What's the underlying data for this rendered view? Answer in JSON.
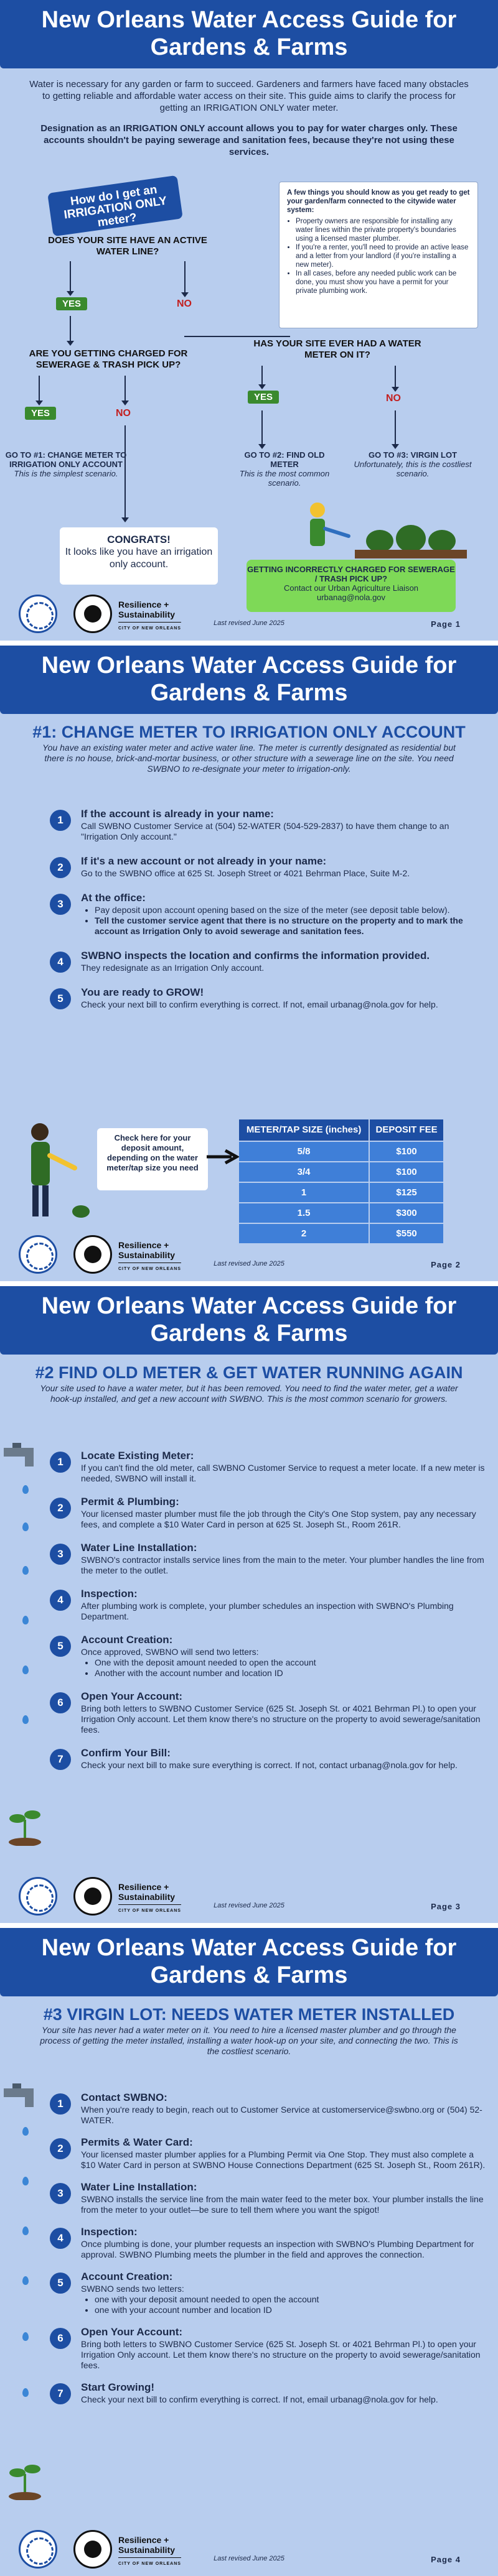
{
  "brand": {
    "blue": "#1d4ea3",
    "page_bg": "#b8cdee",
    "yes_green": "#3a8a2e",
    "no_red": "#c31f1f",
    "callout_green": "#7ed957"
  },
  "title": "New Orleans Water Access Guide for Gardens & Farms",
  "footer": {
    "resilience": "Resilience +",
    "sustainability": "Sustainability",
    "city": "CITY OF NEW ORLEANS",
    "revised": "Last revised June 2025"
  },
  "page1": {
    "intro": "Water is necessary for any garden or farm to succeed. Gardeners and farmers have faced many obstacles to getting reliable and affordable water access on their site. This guide aims to clarify the process for getting an IRRIGATION ONLY water meter.",
    "intro_bold": "Designation as an IRRIGATION ONLY account allows you to pay for water charges only. These accounts shouldn't be paying sewerage and sanitation fees, because they're not using these services.",
    "start": "How do I get an IRRIGATION ONLY meter?",
    "q1": "DOES YOUR SITE HAVE AN ACTIVE WATER LINE?",
    "q2": "ARE YOU GETTING CHARGED FOR SEWERAGE & TRASH PICK UP?",
    "q3": "HAS YOUR SITE EVER HAD A WATER METER ON IT?",
    "yes": "YES",
    "no": "NO",
    "out1_title": "GO TO #1: CHANGE METER TO IRRIGATION ONLY ACCOUNT",
    "out1_note": "This is the simplest scenario.",
    "out2_title": "GO TO #2: FIND OLD METER",
    "out2_note": "This is the most common scenario.",
    "out3_title": "GO TO #3: VIRGIN LOT",
    "out3_note": "Unfortunately, this is the costliest scenario.",
    "congrats_title": "CONGRATS!",
    "congrats_text": "It looks like you have an irrigation only account.",
    "info_title": "A few things you should know as you get ready to get your garden/farm connected to the citywide water system:",
    "info_items": [
      "Property owners are responsible for installing any water lines within the private property's boundaries using a licensed master plumber.",
      "If you're a renter, you'll need to provide an active lease and a letter from your landlord (if you're installing a new meter).",
      "In all cases, before any needed public work can be done, you must show you have a permit for your private plumbing work."
    ],
    "incorrect_title": "GETTING INCORRECTLY CHARGED FOR SEWERAGE / TRASH PICK UP?",
    "incorrect_text": "Contact our Urban Agriculture Liaison",
    "incorrect_email": "urbanag@nola.gov",
    "page_label": "Page 1"
  },
  "page2": {
    "heading": "#1: CHANGE METER TO IRRIGATION ONLY ACCOUNT",
    "intro": "You have an existing water meter and active water line. The meter is currently designated as residential but there is no house, brick-and-mortar business, or other structure with a sewerage line on the site. You need SWBNO to re-designate your meter to irrigation-only.",
    "steps": [
      {
        "title": "If the account is already in your name:",
        "text": "Call SWBNO Customer Service at (504) 52-WATER (504-529-2837) to have them change to an \"Irrigation Only account.\""
      },
      {
        "title": "If it's a new account or not already in your name:",
        "text": "Go to the SWBNO office at 625 St. Joseph Street or 4021 Behrman Place, Suite M-2."
      },
      {
        "title": "At the office:",
        "items": [
          "Pay deposit upon account opening based on the size of the meter (see deposit table below).",
          "Tell the customer service agent that there is no structure on the property and to mark the account as Irrigation Only to avoid sewerage and sanitation fees."
        ]
      },
      {
        "title": "SWBNO inspects the location and confirms the information provided.",
        "text": "They redesignate as an Irrigation Only account."
      },
      {
        "title": "You are ready to GROW!",
        "text": "Check your next bill to confirm everything is correct. If not, email urbanag@nola.gov for help."
      }
    ],
    "deposit_note": "Check here for your deposit amount, depending on the water meter/tap size you need",
    "table_headers": [
      "METER/TAP SIZE (inches)",
      "DEPOSIT FEE"
    ],
    "table_rows": [
      [
        "5/8",
        "$100"
      ],
      [
        "3/4",
        "$100"
      ],
      [
        "1",
        "$125"
      ],
      [
        "1.5",
        "$300"
      ],
      [
        "2",
        "$550"
      ]
    ],
    "page_label": "Page 2"
  },
  "page3": {
    "heading": "#2 FIND OLD METER & GET WATER RUNNING AGAIN",
    "intro": "Your site used to have a water meter, but it has been removed. You need to find the water meter, get a water hook-up installed, and get a new account with SWBNO. This is the most common scenario for growers.",
    "steps": [
      {
        "title": "Locate Existing Meter:",
        "text": "If you can't find the old meter, call SWBNO Customer Service to request a meter locate. If a new meter is needed, SWBNO will install it."
      },
      {
        "title": "Permit & Plumbing:",
        "text": "Your licensed master plumber must file the job through the City's One Stop system, pay any necessary fees, and complete a $10 Water Card in person at 625 St. Joseph St., Room 261R."
      },
      {
        "title": "Water Line Installation:",
        "text": "SWBNO's contractor installs service lines from the main to the meter. Your plumber handles the line from the meter to the outlet."
      },
      {
        "title": "Inspection:",
        "text": "After plumbing work is complete, your plumber schedules an inspection with SWBNO's Plumbing Department."
      },
      {
        "title": "Account Creation:",
        "text": "Once approved, SWBNO will send two letters:",
        "items": [
          "One with the deposit amount needed to open the account",
          "Another with the account number and location ID"
        ]
      },
      {
        "title": "Open Your Account:",
        "text": "Bring both letters to SWBNO Customer Service (625 St. Joseph St. or 4021 Behrman Pl.) to open your Irrigation Only account. Let them know there's no structure on the property to avoid sewerage/sanitation fees."
      },
      {
        "title": "Confirm Your Bill:",
        "text": "Check your next bill to make sure everything is correct. If not, contact urbanag@nola.gov for help."
      }
    ],
    "page_label": "Page 3"
  },
  "page4": {
    "heading": "#3 VIRGIN LOT: NEEDS WATER METER INSTALLED",
    "intro": "Your site has never had a water meter on it. You need to hire a licensed master plumber and go through the process of getting the meter installed, installing a water hook-up on your site, and connecting the two. This is the costliest scenario.",
    "steps": [
      {
        "title": "Contact SWBNO:",
        "text": "When you're ready to begin, reach out to Customer Service at customerservice@swbno.org or (504) 52-WATER."
      },
      {
        "title": "Permits & Water Card:",
        "text": "Your licensed master plumber applies for a Plumbing Permit via One Stop. They must also complete a $10 Water Card in person at SWBNO House Connections Department (625 St. Joseph St., Room 261R)."
      },
      {
        "title": "Water Line Installation:",
        "text": "SWBNO installs the service line from the main water feed to the meter box. Your plumber installs the line from the meter to your outlet—be sure to tell them where you want the spigot!"
      },
      {
        "title": "Inspection:",
        "text": "Once plumbing is done, your plumber requests an inspection with SWBNO's Plumbing Department for approval. SWBNO Plumbing meets the plumber in the field and approves the connection."
      },
      {
        "title": "Account Creation:",
        "text": "SWBNO sends two letters:",
        "items": [
          "one with your deposit amount needed to open the account",
          "one with your account number and location ID"
        ]
      },
      {
        "title": "Open Your Account:",
        "text": "Bring both letters to SWBNO Customer Service (625 St. Joseph St. or 4021 Behrman Pl.) to open your Irrigation Only account. Let them know there's no structure on the property to avoid sewerage/sanitation fees."
      },
      {
        "title": "Start Growing!",
        "text": "Check your next bill to confirm everything is correct. If not, email urbanag@nola.gov for help."
      }
    ],
    "page_label": "Page 4"
  }
}
